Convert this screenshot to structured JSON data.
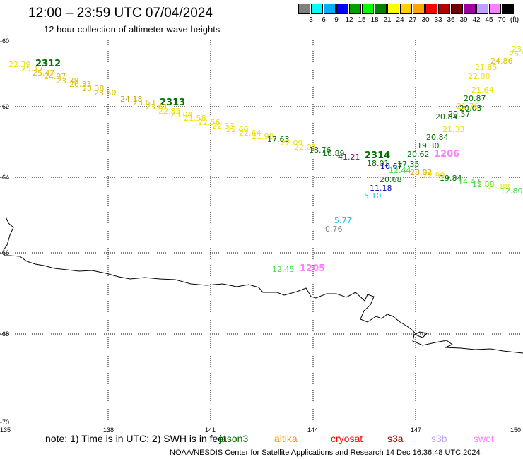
{
  "title": "12:00 – 23:59 UTC 07/04/2024",
  "subtitle": "12 hour collection of altimeter wave heights",
  "colorscale": {
    "colors": [
      "#808080",
      "#00ffff",
      "#00b0ff",
      "#0000ff",
      "#00a000",
      "#00ff00",
      "#008000",
      "#ffff00",
      "#ffd000",
      "#ffa500",
      "#ff0000",
      "#b00000",
      "#700000",
      "#a000a0",
      "#c0a0ff",
      "#ff80ff",
      "#000000"
    ],
    "ticks": [
      "3",
      "6",
      "9",
      "12",
      "15",
      "18",
      "21",
      "24",
      "27",
      "30",
      "33",
      "36",
      "39",
      "42",
      "45",
      "70",
      "(ft)"
    ]
  },
  "lat_labels": [
    "-60",
    "-62",
    "-64",
    "-66",
    "-68",
    "-70"
  ],
  "lon_labels": [
    "135",
    "138",
    "141",
    "144",
    "147",
    "150"
  ],
  "tracks": [
    "2312",
    "2313",
    "2314",
    "1206",
    "1205"
  ],
  "measurements": [
    {
      "text": "22.39",
      "color": "#f0e000"
    },
    {
      "text": "25.17",
      "color": "#e0c000"
    },
    {
      "text": "25.47",
      "color": "#e0c000"
    },
    {
      "text": "24.97",
      "color": "#e0c000"
    },
    {
      "text": "23.38",
      "color": "#e0c000"
    },
    {
      "text": "26.33",
      "color": "#e0c000"
    },
    {
      "text": "23.38",
      "color": "#e0c000"
    },
    {
      "text": "23.50",
      "color": "#e0c000"
    },
    {
      "text": "24.18",
      "color": "#c0a000"
    },
    {
      "text": "23.63",
      "color": "#e0c000"
    },
    {
      "text": "23.61",
      "color": "#e0c000"
    },
    {
      "text": "22.85",
      "color": "#f0e000"
    },
    {
      "text": "23.04",
      "color": "#f0e000"
    },
    {
      "text": "21.58",
      "color": "#f0e000"
    },
    {
      "text": "22.56",
      "color": "#f0e000"
    },
    {
      "text": "22.33",
      "color": "#f0e000"
    },
    {
      "text": "22.60",
      "color": "#f0e000"
    },
    {
      "text": "22.64",
      "color": "#f0e000"
    },
    {
      "text": "21.90",
      "color": "#f0e000"
    },
    {
      "text": "17.63",
      "color": "#007000"
    },
    {
      "text": "22.09",
      "color": "#f0e000"
    },
    {
      "text": "22.01",
      "color": "#f0e000"
    },
    {
      "text": "18.76",
      "color": "#007000"
    },
    {
      "text": "18.89",
      "color": "#007000"
    },
    {
      "text": "41.21",
      "color": "#900090"
    },
    {
      "text": "18.01",
      "color": "#007000"
    },
    {
      "text": "10.67",
      "color": "#0000c0"
    },
    {
      "text": "17.35",
      "color": "#008000"
    },
    {
      "text": "12.44",
      "color": "#40e040"
    },
    {
      "text": "28.02",
      "color": "#e0a000"
    },
    {
      "text": "20.68",
      "color": "#007000"
    },
    {
      "text": "11.18",
      "color": "#0000c0"
    },
    {
      "text": "5.10",
      "color": "#00d0e0"
    },
    {
      "text": "20.62",
      "color": "#007000"
    },
    {
      "text": "19.30",
      "color": "#007000"
    },
    {
      "text": "20.84",
      "color": "#007000"
    },
    {
      "text": "20.84",
      "color": "#007000"
    },
    {
      "text": "20.57",
      "color": "#007000"
    },
    {
      "text": "20.03",
      "color": "#007000"
    },
    {
      "text": "20.87",
      "color": "#007000"
    },
    {
      "text": "21.64",
      "color": "#f0e000"
    },
    {
      "text": "21.33",
      "color": "#f0e000"
    },
    {
      "text": "21.76",
      "color": "#f0e000"
    },
    {
      "text": "22.80",
      "color": "#f0e000"
    },
    {
      "text": "21.85",
      "color": "#f0e000"
    },
    {
      "text": "24.86",
      "color": "#e0c000"
    },
    {
      "text": "23",
      "color": "#f0e000"
    },
    {
      "text": "25.5",
      "color": "#f0e000"
    },
    {
      "text": "22.99",
      "color": "#f0e000"
    },
    {
      "text": "19.84",
      "color": "#007000"
    },
    {
      "text": "14.43",
      "color": "#40e040"
    },
    {
      "text": "12.88",
      "color": "#40e040"
    },
    {
      "text": "21.88",
      "color": "#f0e000"
    },
    {
      "text": "12.80",
      "color": "#40e040"
    },
    {
      "text": "5.77",
      "color": "#00d0e0"
    },
    {
      "text": "0.76",
      "color": "#808080"
    },
    {
      "text": "12.45",
      "color": "#40e040"
    }
  ],
  "note": "note: 1) Time is in UTC; 2) SWH is in feet",
  "satellites": [
    {
      "name": "jason3",
      "color": "#007000"
    },
    {
      "name": "altika",
      "color": "#ff9000"
    },
    {
      "name": "cryosat",
      "color": "#ff0000"
    },
    {
      "name": "s3a",
      "color": "#a00000"
    },
    {
      "name": "s3b",
      "color": "#c0a0ff"
    },
    {
      "name": "swot",
      "color": "#ff80ff"
    }
  ],
  "footer": "NOAA/NESDIS Center for Satellite Applications and Research    14 Dec 16:36:48 UTC 2024"
}
